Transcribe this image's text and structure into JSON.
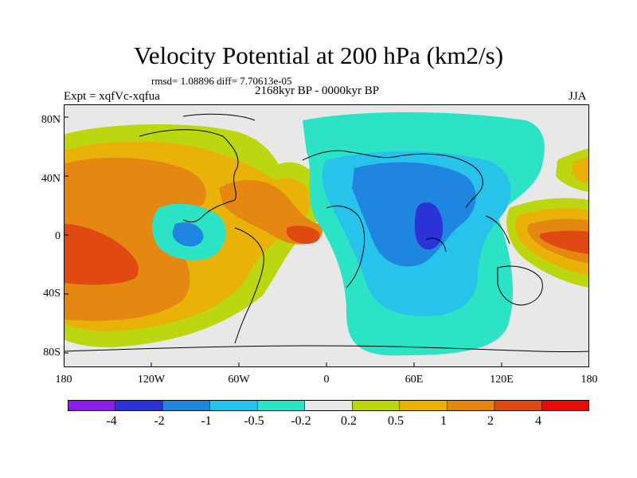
{
  "title": "Velocity Potential at 200 hPa (km2/s)",
  "stats": "rmsd= 1.08896 diff= 7.70613e-05",
  "period": "2168kyr BP - 0000kyr BP",
  "experiment": "Expt = xqfVc-xqfua",
  "season": "JJA",
  "y_ticks": [
    "80N",
    "40N",
    "0",
    "40S",
    "80S"
  ],
  "x_ticks": [
    "180",
    "120W",
    "60W",
    "0",
    "60E",
    "120E",
    "180"
  ],
  "colorbar": {
    "labels": [
      "-4",
      "-2",
      "-1",
      "-0.5",
      "-0.2",
      "0.2",
      "0.5",
      "1",
      "2",
      "4"
    ],
    "colors": [
      "#8a1ee8",
      "#2a32d8",
      "#1f86e0",
      "#27c3ea",
      "#2ce3c6",
      "#e8e8e8",
      "#bcd60f",
      "#e8b208",
      "#e48812",
      "#e04a12",
      "#e60a0a"
    ]
  },
  "palette": {
    "land_outline": "#000000",
    "background": "#e8e8e8"
  }
}
